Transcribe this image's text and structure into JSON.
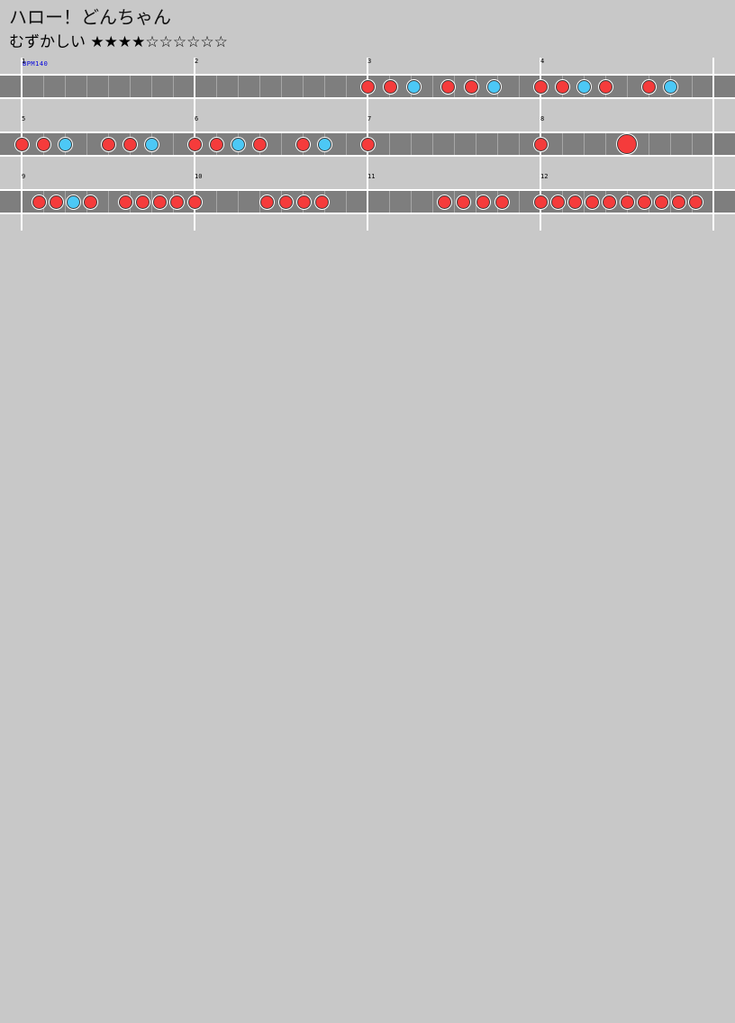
{
  "title": "ハロー！どんちゃん",
  "difficulty": {
    "label": "むずかしい",
    "stars": "★★★★☆☆☆☆☆☆",
    "level": 4,
    "max_level": 10
  },
  "bpm_label": "BPM140",
  "note_types": {
    "d": "don",
    "k": "ka",
    "D": "big don",
    "K": "big ka",
    "R": "roll"
  },
  "colors": {
    "background": "#c8c8c8",
    "lane": "#7e7e7e",
    "don": "#f53b3b",
    "ka": "#4cc8f6",
    "roll": "#fff03a",
    "bpm_text": "#0000dd"
  },
  "rows": [
    {
      "measures": [
        {
          "number": "1",
          "notes": ""
        },
        {
          "number": "2",
          "notes": ""
        },
        {
          "number": "3",
          "notes": "d.d.k..d.d.k..."
        },
        {
          "number": "4",
          "notes": "d.d.k.d...d.k..."
        }
      ]
    },
    {
      "measures": [
        {
          "number": "5",
          "notes": "d.d.k...d.d.k..."
        },
        {
          "number": "6",
          "notes": "d.d.k.d...d.k..."
        },
        {
          "number": "7",
          "notes": "d..............."
        },
        {
          "number": "8",
          "notes": "d.......D......."
        }
      ]
    },
    {
      "measures": [
        {
          "number": "9",
          "notes": "..d.d.k.d...d.d.d.d."
        },
        {
          "number": "10",
          "notes": "d.......d.d.d.d...."
        },
        {
          "number": "11",
          "notes": "........d.d.d.d..."
        },
        {
          "number": "12",
          "notes": "d.d.d.d.d.d.d.d.d.d."
        }
      ]
    }
  ]
}
